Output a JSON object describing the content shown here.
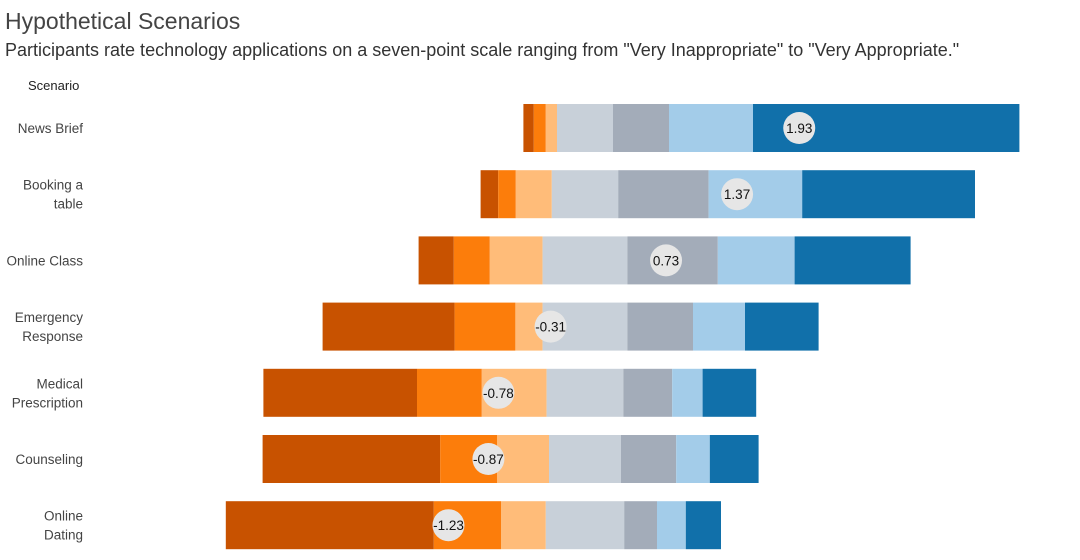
{
  "chart_data": {
    "type": "bar",
    "orientation": "horizontal-diverging-stacked",
    "title": "Hypothetical Scenarios",
    "subtitle": "Participants rate technology applications on a seven-point scale ranging from \"Very Inappropriate\" to \"Very Appropriate.\"",
    "row_header": "Scenario",
    "categories": [
      "News Brief",
      "Booking a table",
      "Online Class",
      "Emergency Response",
      "Medical Prescription",
      "Counseling",
      "Online Dating"
    ],
    "category_lines": [
      [
        "News Brief"
      ],
      [
        "Booking a",
        "table"
      ],
      [
        "Online Class"
      ],
      [
        "Emergency",
        "Response"
      ],
      [
        "Medical",
        "Prescription"
      ],
      [
        "Counseling"
      ],
      [
        "Online",
        "Dating"
      ]
    ],
    "series": [
      {
        "color": "#c85200",
        "values": [
          1.3,
          2.2,
          4.4,
          16.5,
          19.2,
          22.2,
          26.0
        ]
      },
      {
        "color": "#fc7d0b",
        "values": [
          1.5,
          2.2,
          4.5,
          7.6,
          8.1,
          7.1,
          8.4
        ]
      },
      {
        "color": "#ffbc79",
        "values": [
          1.4,
          4.5,
          6.6,
          3.4,
          8.1,
          6.5,
          5.6
        ]
      },
      {
        "color": "#c8d0d9",
        "values": [
          7.0,
          8.3,
          10.6,
          10.6,
          9.6,
          9.0,
          9.8
        ]
      },
      {
        "color": "#a3acb9",
        "values": [
          7.0,
          11.3,
          11.3,
          8.2,
          6.1,
          6.9,
          4.1
        ]
      },
      {
        "color": "#a3cce9",
        "values": [
          10.5,
          11.7,
          9.6,
          6.5,
          3.8,
          4.2,
          3.6
        ]
      },
      {
        "color": "#1170aa",
        "values": [
          33.3,
          21.6,
          14.5,
          9.2,
          6.7,
          6.1,
          4.4
        ]
      }
    ],
    "mean_labels": [
      "1.93",
      "1.37",
      "0.73",
      "-0.31",
      "-0.78",
      "-0.87",
      "-1.23"
    ],
    "means": [
      1.93,
      1.37,
      0.73,
      -0.31,
      -0.78,
      -0.87,
      -1.23
    ]
  }
}
